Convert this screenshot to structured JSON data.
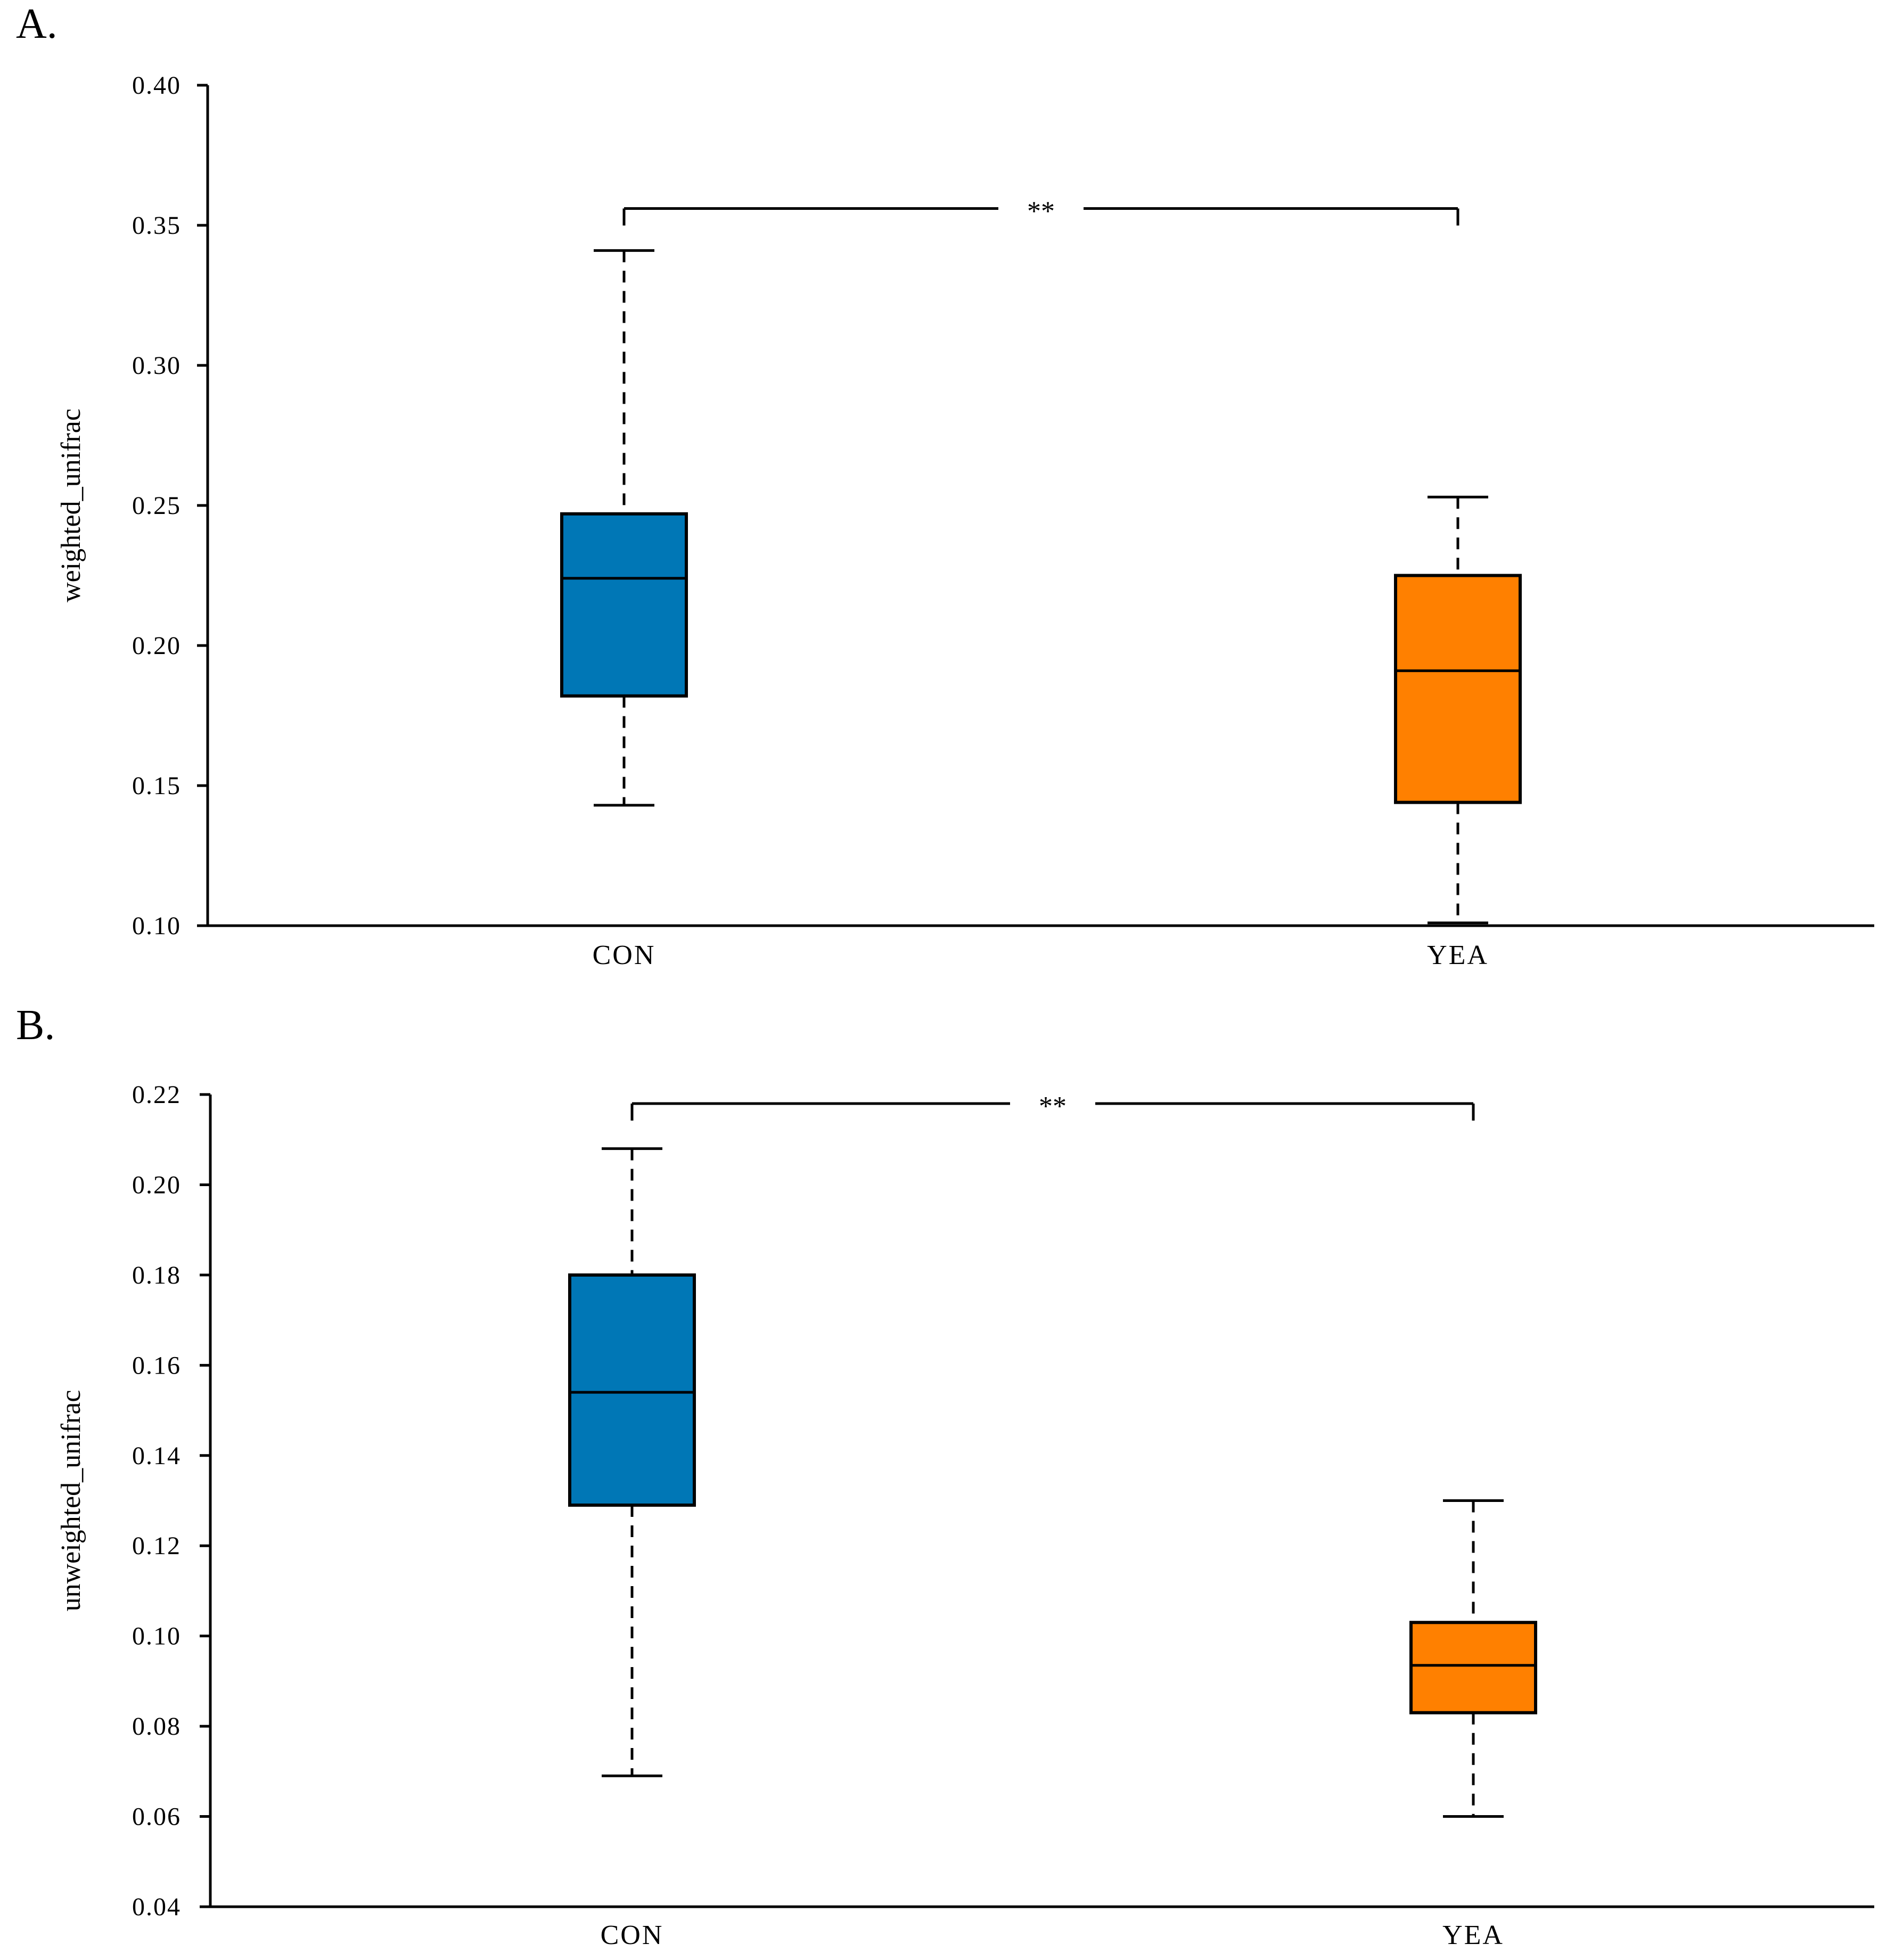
{
  "panels": [
    {
      "label": "A."
    },
    {
      "label": "B."
    }
  ],
  "colors": {
    "CON": "#0077b6",
    "YEA": "#ff8000",
    "stroke": "#000000"
  },
  "chart_data": [
    {
      "type": "box",
      "title": "",
      "xlabel": "",
      "ylabel": "weighted_unifrac",
      "ylim": [
        0.1,
        0.4
      ],
      "yticks": [
        "0.10",
        "0.15",
        "0.20",
        "0.25",
        "0.30",
        "0.35",
        "0.40"
      ],
      "categories": [
        "CON",
        "YEA"
      ],
      "boxes": [
        {
          "name": "CON",
          "min": 0.143,
          "q1": 0.182,
          "median": 0.224,
          "q3": 0.247,
          "max": 0.341
        },
        {
          "name": "YEA",
          "min": 0.101,
          "q1": 0.144,
          "median": 0.191,
          "q3": 0.225,
          "max": 0.253
        }
      ],
      "significance": {
        "label": "**",
        "y": 0.356
      },
      "grid": false
    },
    {
      "type": "box",
      "title": "",
      "xlabel": "",
      "ylabel": "unweighted_unifrac",
      "ylim": [
        0.04,
        0.22
      ],
      "yticks": [
        "0.04",
        "0.06",
        "0.08",
        "0.10",
        "0.12",
        "0.14",
        "0.16",
        "0.18",
        "0.20",
        "0.22"
      ],
      "categories": [
        "CON",
        "YEA"
      ],
      "boxes": [
        {
          "name": "CON",
          "min": 0.069,
          "q1": 0.129,
          "median": 0.154,
          "q3": 0.18,
          "max": 0.208
        },
        {
          "name": "YEA",
          "min": 0.06,
          "q1": 0.083,
          "median": 0.0935,
          "q3": 0.103,
          "max": 0.13
        }
      ],
      "significance": {
        "label": "**",
        "y": 0.218
      },
      "grid": false
    }
  ]
}
